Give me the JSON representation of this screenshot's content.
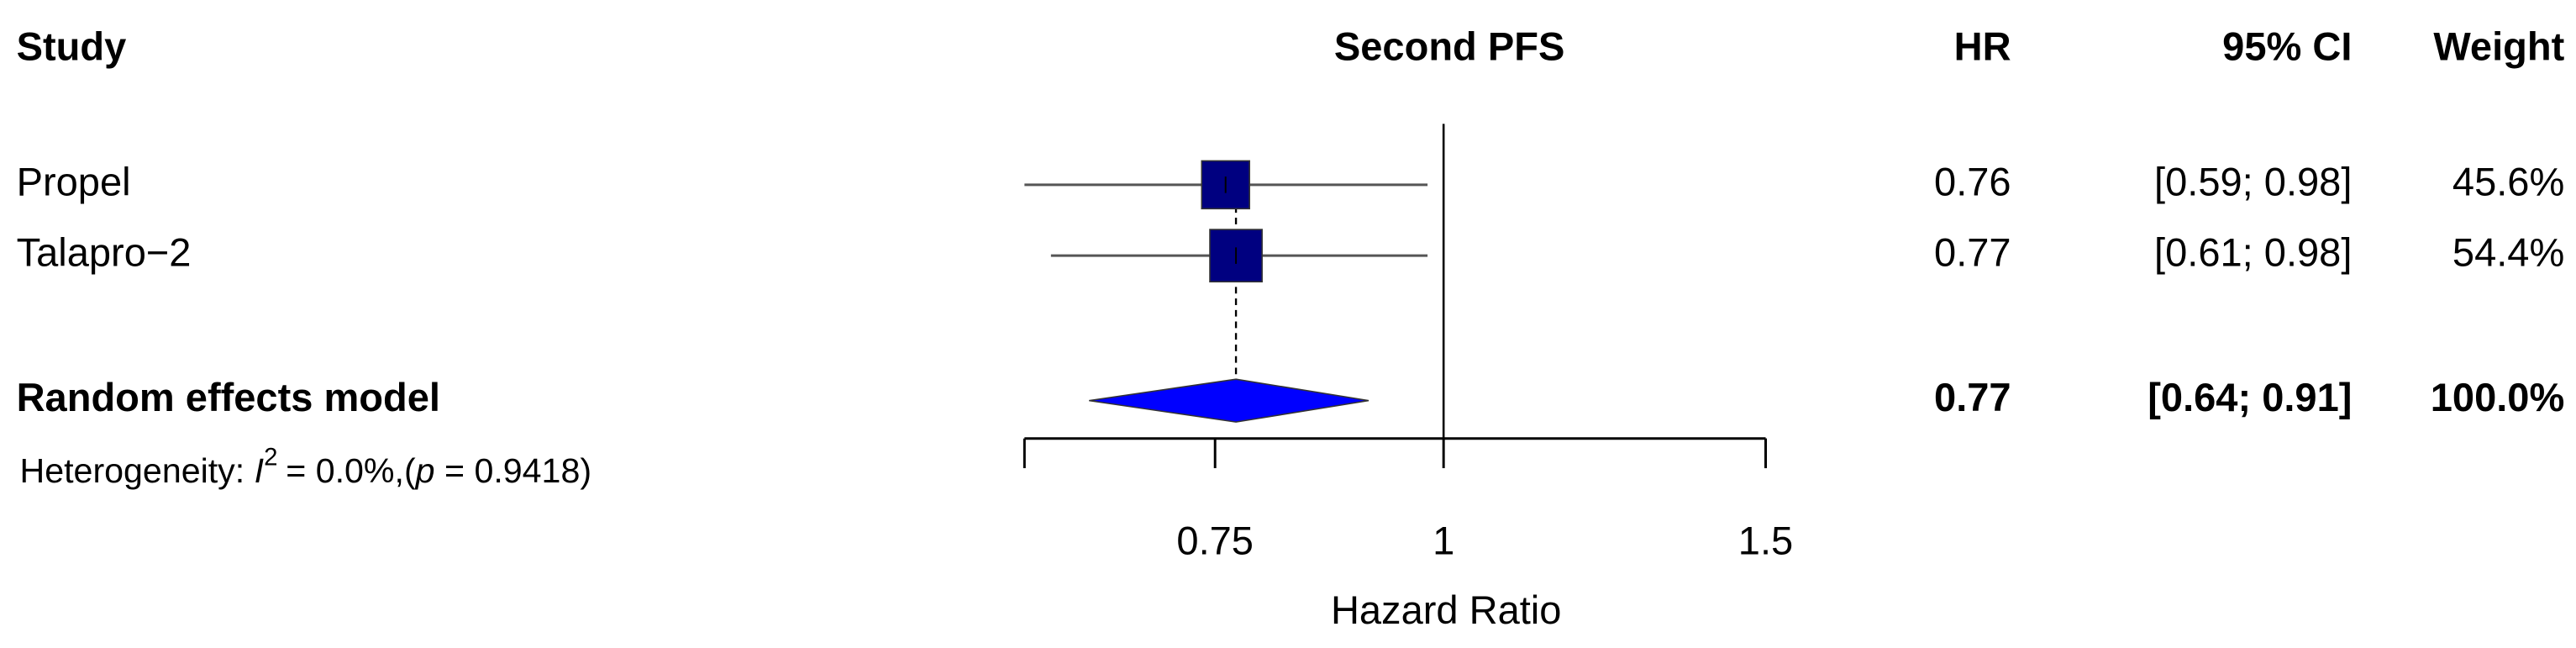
{
  "chart_data": {
    "type": "forest",
    "title": "Second PFS",
    "columns": {
      "study": "Study",
      "hr": "HR",
      "ci": "95% CI",
      "weight": "Weight"
    },
    "categories": [
      "Propel",
      "Talapro−2"
    ],
    "values": [
      0.76,
      0.77
    ],
    "lower": [
      0.59,
      0.61
    ],
    "upper": [
      0.98,
      0.98
    ],
    "ci_labels": [
      "[0.59; 0.98]",
      "[0.61; 0.98]"
    ],
    "weights": [
      45.6,
      54.4
    ],
    "weight_labels": [
      "45.6%",
      "54.4%"
    ],
    "color": "#000080",
    "pooled": {
      "label": "Random effects model",
      "value": 0.77,
      "lower": 0.64,
      "upper": 0.91,
      "ci_label": "[0.64; 0.91]",
      "weight": 100.0,
      "weight_label": "100.0%",
      "color": "#0000ff"
    },
    "heterogeneity": {
      "label": "Heterogeneity:",
      "i2_symbol": "I",
      "i2_exponent": "2",
      "i2_label": "= 0.0%,(",
      "p_symbol": "p",
      "p_label": "= 0.9418)"
    },
    "reference": 1,
    "xlabel": "Hazard Ratio",
    "log_x": true,
    "xlim": [
      0.59,
      1.5
    ],
    "xticks": [
      0.75,
      1,
      1.5
    ]
  }
}
